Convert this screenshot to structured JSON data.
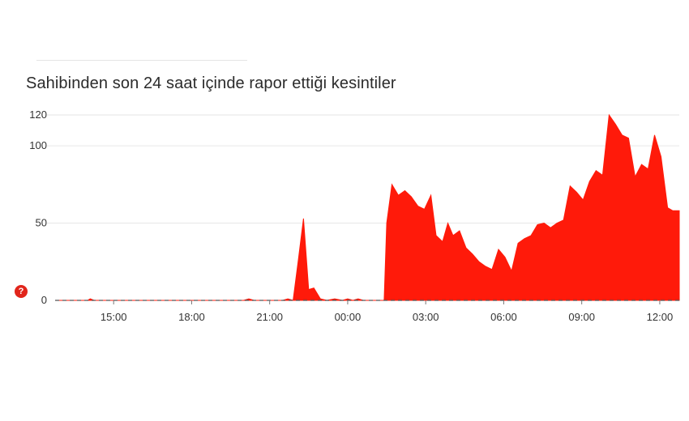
{
  "title": "Sahibinden son 24 saat içinde rapor ettiği kesintiler",
  "help_badge": "?",
  "colors": {
    "area": "#ff1a0a",
    "grid": "#e6e6e6",
    "baseline": "#555555",
    "text": "#333333",
    "badge": "#e1251b"
  },
  "chart_data": {
    "type": "area",
    "title": "Sahibinden son 24 saat içinde rapor ettiği kesintiler",
    "xlabel": "",
    "ylabel": "",
    "ylim": [
      0,
      120
    ],
    "yticks": [
      0,
      50,
      100,
      120
    ],
    "xlim": [
      -2.25,
      21.75
    ],
    "xticks": [
      {
        "label": "15:00",
        "value": 0
      },
      {
        "label": "18:00",
        "value": 3
      },
      {
        "label": "21:00",
        "value": 6
      },
      {
        "label": "00:00",
        "value": 9
      },
      {
        "label": "03:00",
        "value": 12
      },
      {
        "label": "06:00",
        "value": 15
      },
      {
        "label": "09:00",
        "value": 18
      },
      {
        "label": "12:00",
        "value": 21
      }
    ],
    "grid": true,
    "legend": "none",
    "series": [
      {
        "x": [
          -2.25,
          -1.0,
          -0.9,
          -0.75,
          -0.5,
          0,
          1,
          2,
          3,
          4,
          5,
          5.2,
          5.4,
          5.6,
          6,
          6.5,
          6.7,
          6.9,
          7.1,
          7.3,
          7.5,
          7.7,
          7.95,
          8.2,
          8.5,
          8.8,
          9.0,
          9.2,
          9.4,
          9.6,
          9.8,
          10.0,
          10.4,
          10.5,
          10.7,
          10.95,
          11.2,
          11.45,
          11.7,
          11.95,
          12.2,
          12.4,
          12.65,
          12.85,
          13.05,
          13.3,
          13.55,
          13.8,
          14.05,
          14.3,
          14.55,
          14.8,
          15.05,
          15.3,
          15.55,
          15.8,
          16.05,
          16.3,
          16.55,
          16.8,
          17.05,
          17.3,
          17.55,
          17.8,
          18.05,
          18.3,
          18.55,
          18.8,
          19.05,
          19.3,
          19.55,
          19.8,
          20.05,
          20.3,
          20.55,
          20.8,
          21.05,
          21.3,
          21.5,
          21.75
        ],
        "values": [
          0,
          0,
          1,
          0,
          0,
          0,
          0,
          0,
          0,
          0,
          0,
          1,
          0,
          0,
          0,
          0,
          1,
          0,
          26,
          53,
          7,
          8,
          1,
          0,
          1,
          0,
          1,
          0,
          1,
          0,
          0,
          0,
          0,
          50,
          75,
          68,
          71,
          67,
          61,
          59,
          68,
          42,
          38,
          50,
          42,
          45,
          34,
          30,
          25,
          22,
          20,
          33,
          28,
          19,
          37,
          40,
          42,
          49,
          50,
          47,
          50,
          52,
          74,
          70,
          65,
          77,
          84,
          81,
          120,
          114,
          107,
          105,
          80,
          88,
          85,
          107,
          93,
          60,
          58,
          58
        ]
      }
    ]
  }
}
